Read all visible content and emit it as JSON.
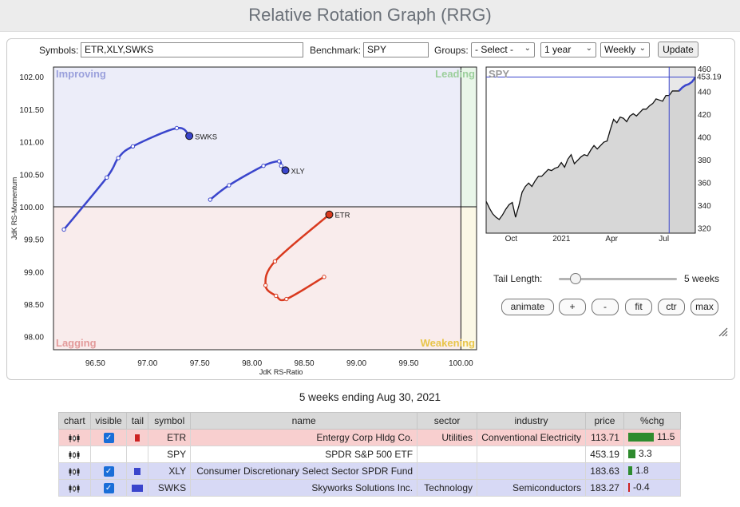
{
  "title": "Relative Rotation Graph (RRG)",
  "controls": {
    "symbols_label": "Symbols:",
    "symbols_value": "ETR,XLY,SWKS",
    "benchmark_label": "Benchmark:",
    "benchmark_value": "SPY",
    "groups_label": "Groups:",
    "groups_selected": "- Select -",
    "period_selected": "1 year",
    "interval_selected": "Weekly",
    "update_label": "Update"
  },
  "rrg": {
    "x_title": "JdK RS-Ratio",
    "y_title": "JdK RS-Momentum",
    "x_ticks": [
      "96.50",
      "97.00",
      "97.50",
      "98.00",
      "98.50",
      "99.00",
      "99.50",
      "100.00"
    ],
    "y_ticks": [
      "102.00",
      "101.50",
      "101.00",
      "100.50",
      "100.00",
      "99.50",
      "99.00",
      "98.50",
      "98.00"
    ],
    "quadrants": {
      "improving": "Improving",
      "leading": "Leading",
      "lagging": "Lagging",
      "weakening": "Weakening"
    },
    "colors": {
      "ETR": "#d93a1f",
      "XLY": "#3a45cc",
      "SWKS": "#3a45cc"
    },
    "tails": [
      {
        "symbol": "ETR",
        "points": [
          [
            98.69,
            98.92
          ],
          [
            98.33,
            98.58
          ],
          [
            98.23,
            98.63
          ],
          [
            98.13,
            98.79
          ],
          [
            98.22,
            99.16
          ],
          [
            98.74,
            99.88
          ]
        ]
      },
      {
        "symbol": "XLY",
        "points": [
          [
            97.6,
            100.11
          ],
          [
            97.78,
            100.33
          ],
          [
            98.11,
            100.63
          ],
          [
            98.26,
            100.7
          ],
          [
            98.28,
            100.63
          ],
          [
            98.32,
            100.56
          ]
        ]
      },
      {
        "symbol": "SWKS",
        "points": [
          [
            96.2,
            99.65
          ],
          [
            96.61,
            100.45
          ],
          [
            96.72,
            100.75
          ],
          [
            96.86,
            100.93
          ],
          [
            97.28,
            101.21
          ],
          [
            97.4,
            101.09
          ]
        ]
      }
    ]
  },
  "benchmark_chart": {
    "label": "SPY",
    "last_value": "453.19",
    "y_ticks": [
      "460",
      "440",
      "420",
      "400",
      "380",
      "360",
      "340",
      "320"
    ],
    "x_ticks": [
      "Oct",
      "2021",
      "Apr",
      "Jul"
    ],
    "series": [
      344,
      338,
      333,
      330,
      328,
      332,
      337,
      341,
      343,
      330,
      340,
      352,
      357,
      360,
      357,
      362,
      366,
      366,
      369,
      372,
      371,
      373,
      374,
      378,
      374,
      381,
      385,
      377,
      380,
      383,
      385,
      384,
      389,
      393,
      390,
      393,
      396,
      397,
      407,
      416,
      413,
      418,
      417,
      414,
      419,
      421,
      419,
      422,
      425,
      425,
      428,
      430,
      434,
      433,
      432,
      437,
      437,
      441,
      441,
      441,
      444,
      446,
      447,
      449,
      453
    ]
  },
  "tail_length": {
    "label": "Tail Length:",
    "value": "5 weeks",
    "weeks": 5
  },
  "view_buttons": [
    "animate",
    "+",
    "-",
    "fit",
    "ctr",
    "max"
  ],
  "period_title": "5 weeks ending Aug 30, 2021",
  "table": {
    "headers": [
      "chart",
      "visible",
      "tail",
      "symbol",
      "name",
      "sector",
      "industry",
      "price",
      "%chg"
    ],
    "rows": [
      {
        "symbol": "ETR",
        "name": "Entergy Corp Hldg Co.",
        "sector": "Utilities",
        "industry": "Conventional Electricity",
        "price": "113.71",
        "pct": "11.5",
        "pct_value": 11.5,
        "visible": true,
        "tail_color": "#cc2222",
        "bar_color": "#2e8b2e"
      },
      {
        "symbol": "SPY",
        "name": "SPDR S&P 500 ETF",
        "sector": "",
        "industry": "",
        "price": "453.19",
        "pct": "3.3",
        "pct_value": 3.3,
        "visible": false,
        "tail_color": "",
        "bar_color": "#2e8b2e"
      },
      {
        "symbol": "XLY",
        "name": "Consumer Discretionary Select Sector SPDR Fund",
        "sector": "",
        "industry": "",
        "price": "183.63",
        "pct": "1.8",
        "pct_value": 1.8,
        "visible": true,
        "tail_color": "#3a45cc",
        "bar_color": "#2e8b2e"
      },
      {
        "symbol": "SWKS",
        "name": "Skyworks Solutions Inc.",
        "sector": "Technology",
        "industry": "Semiconductors",
        "price": "183.27",
        "pct": "-0.4",
        "pct_value": -0.4,
        "visible": true,
        "tail_color": "#3a45cc",
        "bar_color": "#cc2222"
      }
    ]
  }
}
